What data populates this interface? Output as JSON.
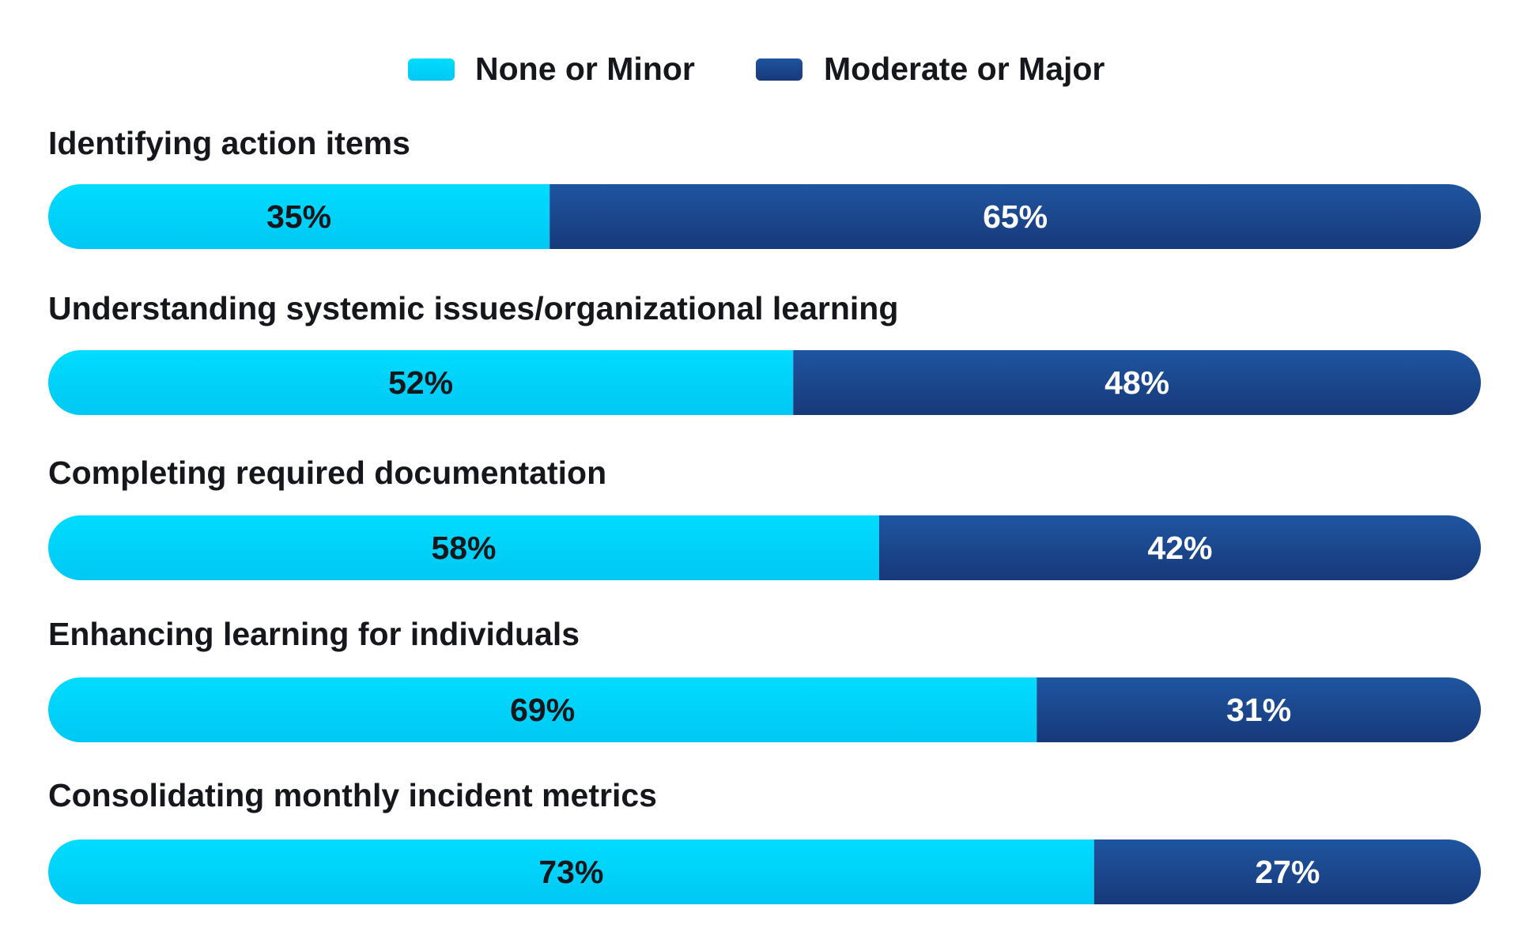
{
  "colors": {
    "none_or_minor": "#00d8ff",
    "moderate_or_major": "#1a4a8f",
    "label_on_light": "#15171c",
    "label_on_dark": "#ffffff"
  },
  "chart_data": {
    "type": "bar",
    "orientation": "horizontal",
    "stacked": true,
    "normalized": true,
    "categories": [
      "Identifying action items",
      "Understanding systemic issues/organizational learning",
      "Completing required documentation",
      "Enhancing learning for individuals",
      "Consolidating monthly incident metrics"
    ],
    "series": [
      {
        "name": "None or Minor",
        "values": [
          35,
          52,
          58,
          69,
          73
        ],
        "labels": [
          "35%",
          "52%",
          "58%",
          "69%",
          "73%"
        ],
        "color": "#00d8ff"
      },
      {
        "name": "Moderate or Major",
        "values": [
          65,
          48,
          42,
          31,
          27
        ],
        "labels": [
          "65%",
          "48%",
          "42%",
          "31%",
          "27%"
        ],
        "color": "#1a4a8f"
      }
    ],
    "unit": "%",
    "xlim": [
      0,
      100
    ],
    "legend_position": "top-center",
    "grid": false
  }
}
